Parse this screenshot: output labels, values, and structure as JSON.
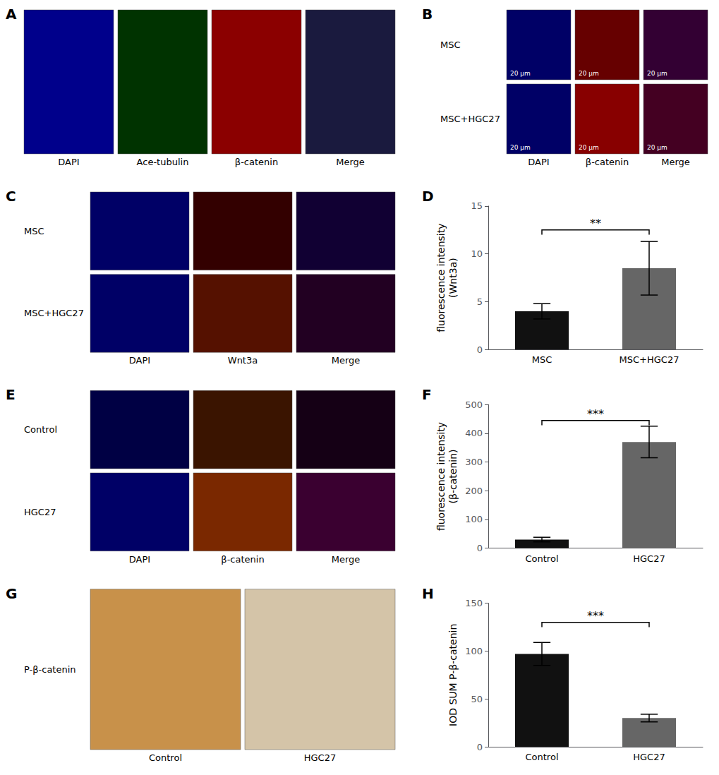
{
  "chart_data": [
    {
      "type": "image",
      "title": "A",
      "categories": [
        "DAPI",
        "Ace-tubulin",
        "β-catenin",
        "Merge"
      ],
      "colors": [
        [
          "#00008B",
          "#003300",
          "#8B0000",
          "#1a1a3e"
        ]
      ]
    },
    {
      "type": "image",
      "title": "B",
      "categories": [
        "DAPI",
        "β-catenin",
        "Merge"
      ],
      "rows": [
        "MSC",
        "MSC+HGC27"
      ],
      "colors": [
        [
          "#000066",
          "#660000",
          "#330033"
        ],
        [
          "#000066",
          "#880000",
          "#440022"
        ]
      ],
      "annotations": [
        {
          "text": "20 μm"
        }
      ]
    },
    {
      "type": "image",
      "title": "C",
      "categories": [
        "DAPI",
        "Wnt3a",
        "Merge"
      ],
      "rows": [
        "MSC",
        "MSC+HGC27"
      ],
      "colors": [
        [
          "#000066",
          "#330000",
          "#110033"
        ],
        [
          "#000066",
          "#551100",
          "#220022"
        ]
      ]
    },
    {
      "type": "bar",
      "title": "D",
      "categories": [
        "MSC",
        "MSC+HGC27"
      ],
      "values": [
        4.0,
        8.5
      ],
      "errors": [
        0.8,
        2.8
      ],
      "colors": [
        "#111111",
        "#666666"
      ],
      "ylabel": "fluorescence intensity\n(Wnt3a)",
      "ylim": [
        0,
        15
      ],
      "yticks": [
        0,
        5,
        10,
        15
      ],
      "grid": false,
      "annotations": [
        {
          "text": "**",
          "from": "MSC",
          "to": "MSC+HGC27",
          "y": 12.5
        }
      ]
    },
    {
      "type": "image",
      "title": "E",
      "categories": [
        "DAPI",
        "β-catenin",
        "Merge"
      ],
      "rows": [
        "Control",
        "HGC27"
      ],
      "colors": [
        [
          "#000044",
          "#3a1400",
          "#150015"
        ],
        [
          "#000066",
          "#7a2800",
          "#3a0030"
        ]
      ]
    },
    {
      "type": "bar",
      "title": "F",
      "categories": [
        "Control",
        "HGC27"
      ],
      "values": [
        30.0,
        370.0
      ],
      "errors": [
        8.0,
        55.0
      ],
      "colors": [
        "#111111",
        "#666666"
      ],
      "ylabel": "fluorescence intensity\n(β-catenin)",
      "ylim": [
        0,
        500
      ],
      "yticks": [
        0,
        100,
        200,
        300,
        400,
        500
      ],
      "grid": false,
      "annotations": [
        {
          "text": "***",
          "from": "Control",
          "to": "HGC27",
          "y": 445
        }
      ]
    },
    {
      "type": "image",
      "title": "G",
      "categories": [
        "Control",
        "HGC27"
      ],
      "rows": [
        "P-β-catenin"
      ],
      "colors": [
        [
          "#c8914a",
          "#d4c4a8"
        ]
      ]
    },
    {
      "type": "bar",
      "title": "H",
      "categories": [
        "Control",
        "HGC27"
      ],
      "values": [
        97.0,
        30.0
      ],
      "errors": [
        12.0,
        4.0
      ],
      "colors": [
        "#111111",
        "#666666"
      ],
      "ylabel": "IOD SUM P-β-catenin",
      "ylim": [
        0,
        150
      ],
      "yticks": [
        0,
        50,
        100,
        150
      ],
      "grid": false,
      "annotations": [
        {
          "text": "***",
          "from": "Control",
          "to": "HGC27",
          "y": 130
        }
      ]
    }
  ]
}
